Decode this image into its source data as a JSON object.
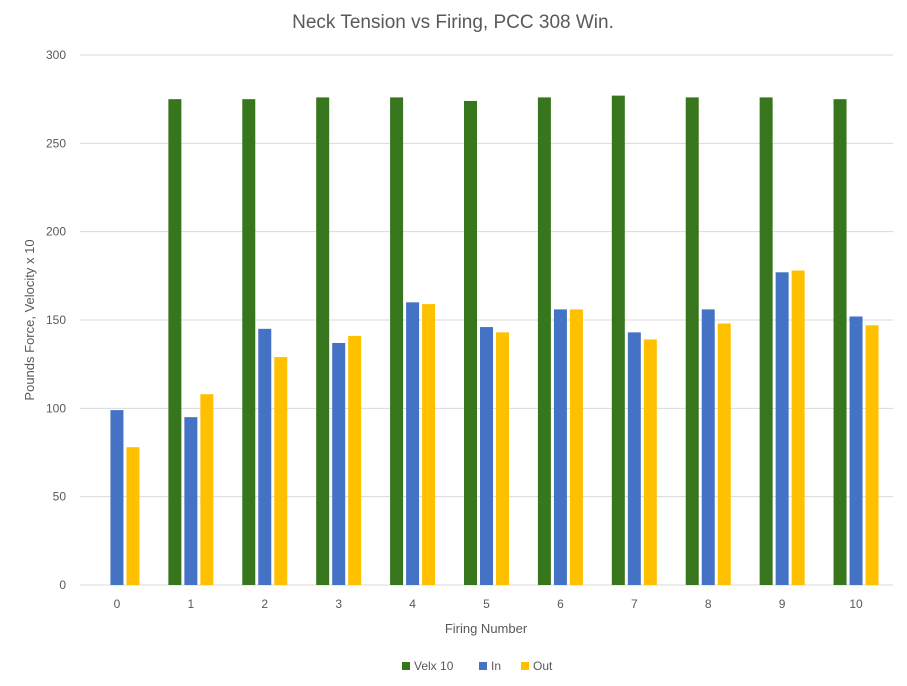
{
  "chart_data": {
    "type": "bar",
    "title": "Neck Tension vs Firing, PCC 308 Win.",
    "xlabel": "Firing Number",
    "ylabel": "Pounds Force, Velocity x 10",
    "categories": [
      "0",
      "1",
      "2",
      "3",
      "4",
      "5",
      "6",
      "7",
      "8",
      "9",
      "10"
    ],
    "ylim": [
      0,
      300
    ],
    "yticks": [
      0,
      50,
      100,
      150,
      200,
      250,
      300
    ],
    "grid": true,
    "legend_position": "bottom",
    "series": [
      {
        "name": "Velx 10",
        "color": "#38761d",
        "values": [
          null,
          275,
          275,
          276,
          276,
          274,
          276,
          277,
          276,
          276,
          275
        ]
      },
      {
        "name": "In",
        "color": "#4472c4",
        "values": [
          99,
          95,
          145,
          137,
          160,
          146,
          156,
          143,
          156,
          177,
          152
        ]
      },
      {
        "name": "Out",
        "color": "#ffc000",
        "values": [
          78,
          108,
          129,
          141,
          159,
          143,
          156,
          139,
          148,
          178,
          147
        ]
      }
    ]
  }
}
